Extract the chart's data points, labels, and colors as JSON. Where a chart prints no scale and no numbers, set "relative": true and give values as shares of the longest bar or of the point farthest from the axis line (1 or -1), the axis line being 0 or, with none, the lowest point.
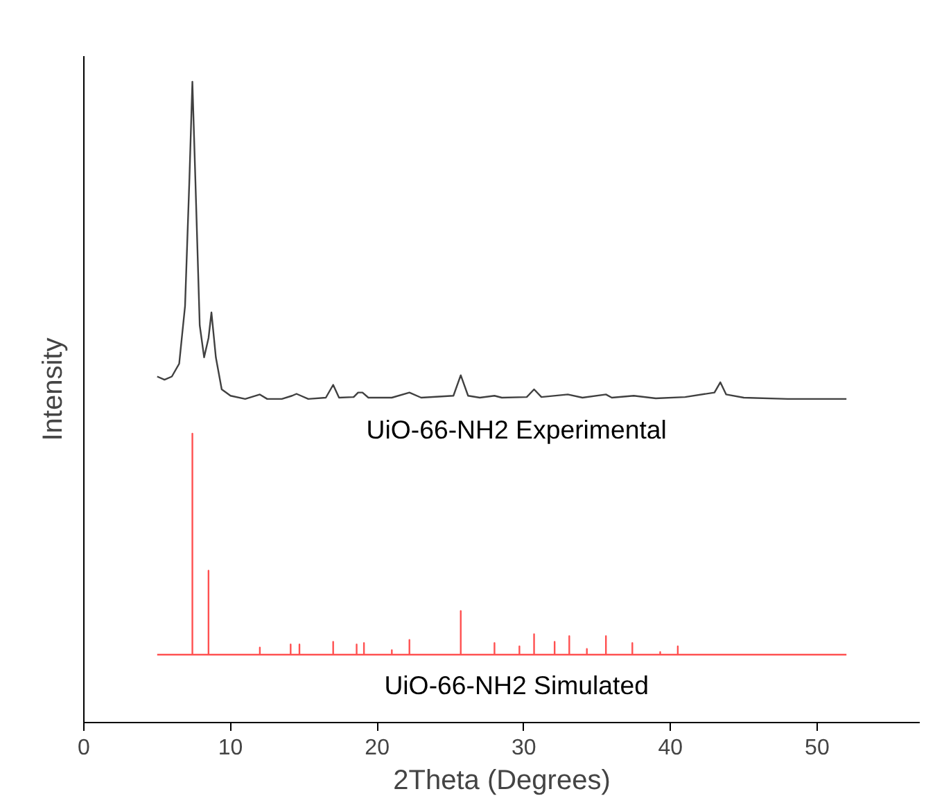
{
  "chart_data": {
    "type": "line",
    "relative": true,
    "xlabel": "2Theta (Degrees)",
    "ylabel": "Intensity",
    "xlim": [
      0,
      57
    ],
    "xticks": [
      0,
      10,
      20,
      30,
      40,
      50
    ],
    "grid": false,
    "marker": "none",
    "line_style": "solid",
    "series": [
      {
        "name": "UiO-66-NH2 Experimental",
        "color": "#404040",
        "x": [
          5.0,
          5.5,
          6.0,
          6.5,
          6.9,
          7.2,
          7.4,
          7.6,
          7.9,
          8.2,
          8.5,
          8.7,
          9.0,
          9.4,
          10,
          11,
          12,
          12.5,
          13.5,
          14.2,
          14.5,
          14.8,
          15.3,
          16.5,
          17.0,
          17.4,
          18.4,
          18.7,
          19.0,
          19.4,
          21,
          22.2,
          23,
          25.2,
          25.7,
          26.2,
          27,
          28,
          28.5,
          30.2,
          30.7,
          31.2,
          33,
          34,
          35.6,
          36,
          37.5,
          39,
          41,
          43,
          43.4,
          43.8,
          45,
          48,
          52
        ],
        "values": [
          0.54,
          0.535,
          0.54,
          0.56,
          0.65,
          0.85,
          1.0,
          0.85,
          0.62,
          0.57,
          0.6,
          0.64,
          0.57,
          0.52,
          0.51,
          0.505,
          0.512,
          0.505,
          0.505,
          0.51,
          0.513,
          0.51,
          0.505,
          0.507,
          0.527,
          0.507,
          0.508,
          0.515,
          0.515,
          0.507,
          0.507,
          0.515,
          0.507,
          0.51,
          0.542,
          0.51,
          0.507,
          0.51,
          0.507,
          0.508,
          0.52,
          0.508,
          0.512,
          0.507,
          0.512,
          0.507,
          0.51,
          0.506,
          0.508,
          0.515,
          0.531,
          0.512,
          0.507,
          0.505,
          0.505
        ]
      },
      {
        "name": "UiO-66-NH2 Simulated",
        "color": "#ff5050",
        "x": [
          5,
          7.4,
          7.4,
          7.4,
          8.5,
          8.5,
          8.5,
          12.0,
          12.0,
          12.0,
          14.1,
          14.1,
          14.1,
          14.7,
          14.7,
          14.7,
          17.0,
          17.0,
          17.0,
          18.6,
          18.6,
          18.6,
          19.1,
          19.1,
          19.1,
          21.0,
          21.0,
          21.0,
          22.2,
          22.2,
          22.2,
          25.7,
          25.7,
          25.7,
          28.0,
          28.0,
          28.0,
          29.7,
          29.7,
          29.7,
          30.7,
          30.7,
          30.7,
          32.1,
          32.1,
          32.1,
          33.1,
          33.1,
          33.1,
          34.3,
          34.3,
          34.3,
          35.6,
          35.6,
          35.6,
          37.4,
          37.4,
          37.4,
          39.3,
          39.3,
          39.3,
          40.5,
          40.5,
          40.5,
          52
        ],
        "values": [
          0.106,
          0.106,
          0.451,
          0.106,
          0.106,
          0.237,
          0.106,
          0.106,
          0.117,
          0.106,
          0.106,
          0.122,
          0.106,
          0.106,
          0.122,
          0.106,
          0.106,
          0.126,
          0.106,
          0.106,
          0.122,
          0.106,
          0.106,
          0.124,
          0.106,
          0.106,
          0.113,
          0.106,
          0.106,
          0.129,
          0.106,
          0.106,
          0.174,
          0.106,
          0.106,
          0.124,
          0.106,
          0.106,
          0.119,
          0.106,
          0.106,
          0.138,
          0.106,
          0.106,
          0.126,
          0.106,
          0.106,
          0.135,
          0.106,
          0.106,
          0.115,
          0.106,
          0.106,
          0.135,
          0.106,
          0.106,
          0.124,
          0.106,
          0.106,
          0.11,
          0.106,
          0.106,
          0.119,
          0.106,
          0.106
        ]
      }
    ]
  }
}
